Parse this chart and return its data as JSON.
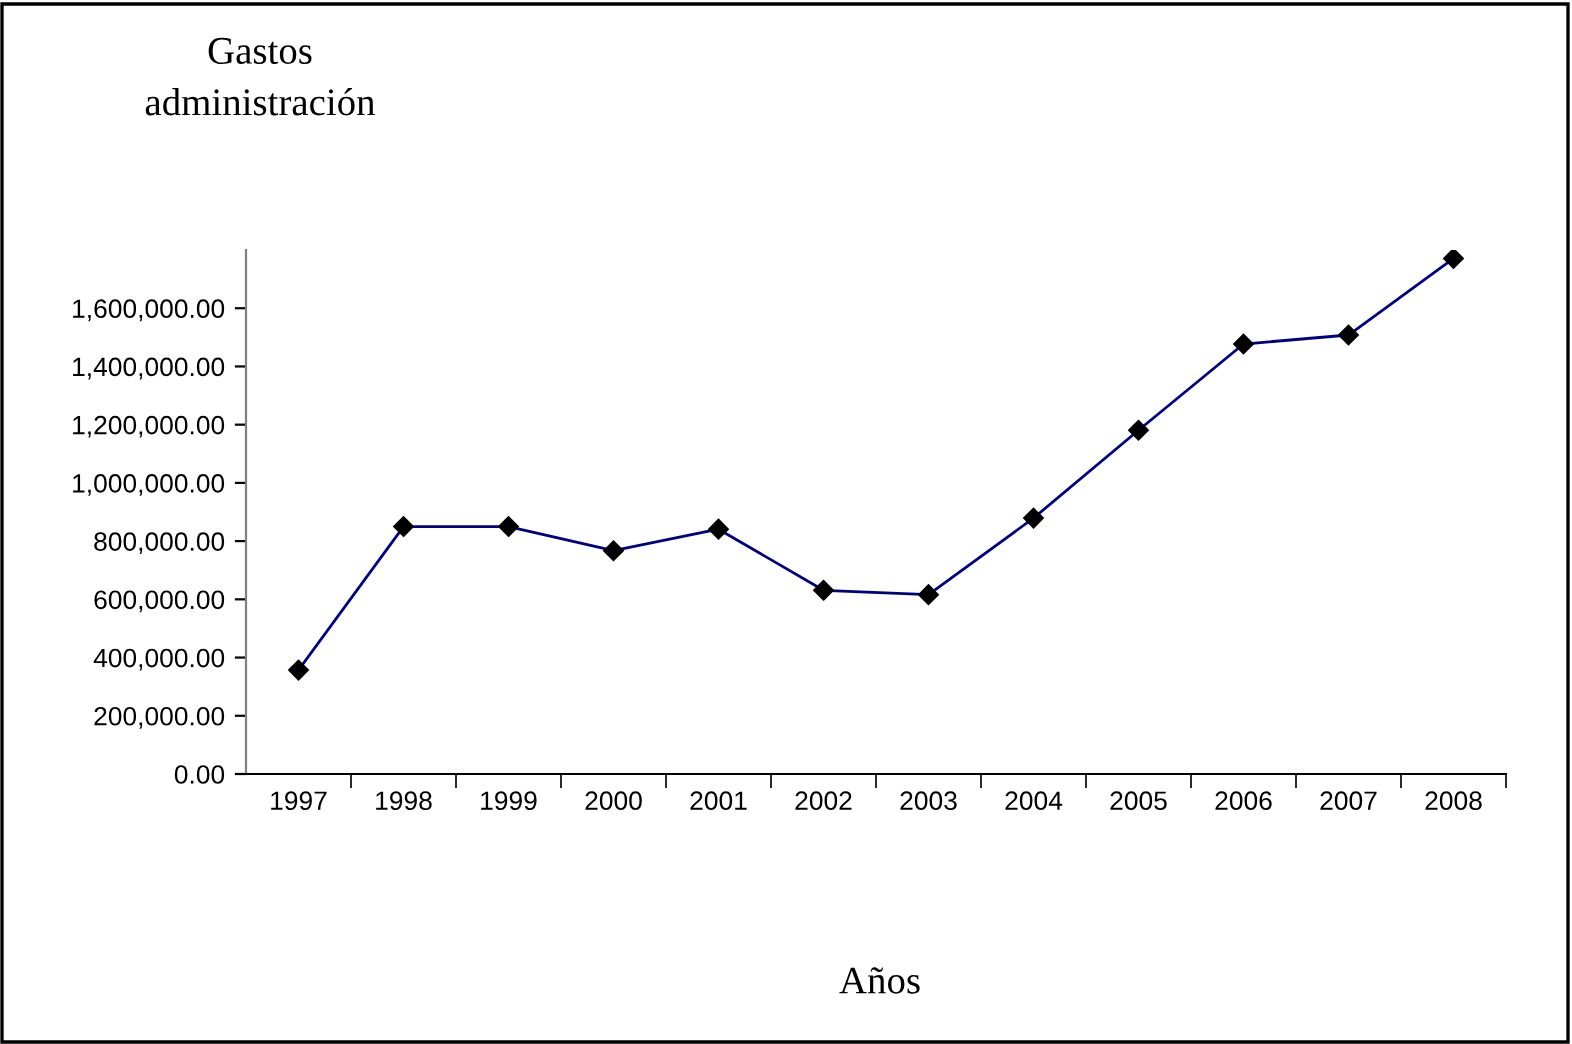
{
  "chart_data": {
    "type": "line",
    "ylabel": "Gastos\nadministración",
    "xlabel": "Años",
    "categories": [
      "1997",
      "1998",
      "1999",
      "2000",
      "2001",
      "2002",
      "2003",
      "2004",
      "2005",
      "2006",
      "2007",
      "2008"
    ],
    "series": [
      {
        "color": "#000080",
        "values": [
          357000,
          850000,
          850000,
          767000,
          841000,
          631000,
          616000,
          879000,
          1181000,
          1477000,
          1508000,
          1771000
        ]
      }
    ],
    "marker": "diamond",
    "line_style": "solid",
    "grid": false,
    "legend": false,
    "ylim": [
      0,
      1800000
    ],
    "yticks": [
      {
        "value": 0,
        "label": "0.00"
      },
      {
        "value": 200000,
        "label": "200,000.00"
      },
      {
        "value": 400000,
        "label": "400,000.00"
      },
      {
        "value": 600000,
        "label": "600,000.00"
      },
      {
        "value": 800000,
        "label": "800,000.00"
      },
      {
        "value": 1000000,
        "label": "1,000,000.00"
      },
      {
        "value": 1200000,
        "label": "1,200,000.00"
      },
      {
        "value": 1400000,
        "label": "1,400,000.00"
      },
      {
        "value": 1600000,
        "label": "1,600,000.00"
      }
    ]
  }
}
